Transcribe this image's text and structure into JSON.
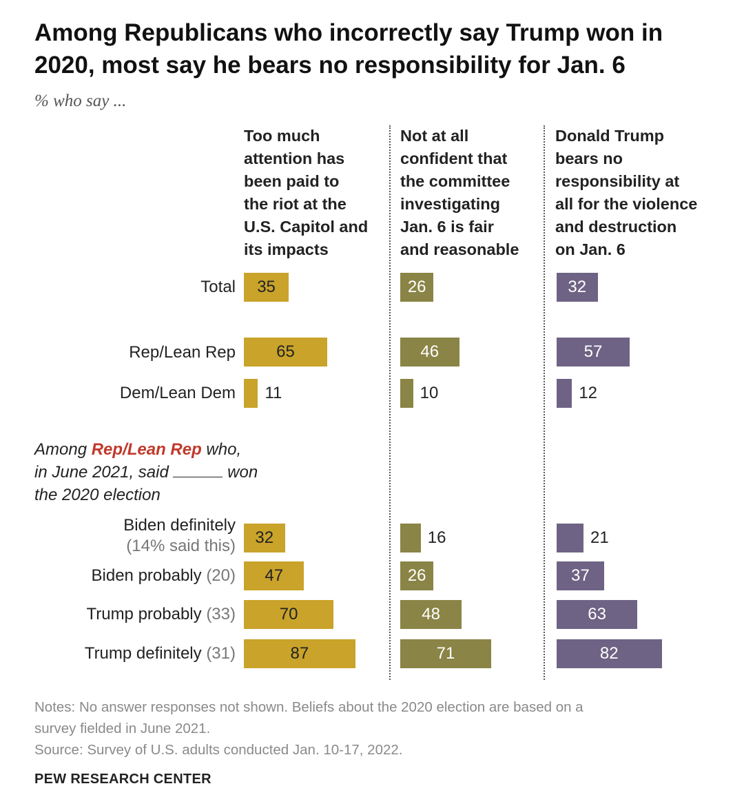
{
  "title": "Among Republicans who incorrectly say Trump won in 2020, most say he bears no responsibility for Jan. 6",
  "subtitle": "% who say ...",
  "section_label": {
    "pre": "Among ",
    "highlight": "Rep/Lean Rep",
    "mid": " who,",
    "line2_pre": "in June 2021, said",
    "line2_post": "won",
    "line3": "the 2020 election"
  },
  "notes": {
    "line1": "Notes: No answer responses not shown. Beliefs about the 2020 election are based on a",
    "line2": "survey fielded in June 2021.",
    "line3": "Source: Survey of U.S. adults conducted Jan. 10-17, 2022."
  },
  "source_brand": "PEW RESEARCH CENTER",
  "colors": {
    "gold": "#c9a32a",
    "olive": "#8a8446",
    "purple": "#6e6384",
    "highlight": "#c0392b"
  },
  "chart_data": {
    "type": "bar",
    "orientation": "horizontal",
    "unit": "%",
    "xlim": [
      0,
      100
    ],
    "columns": [
      {
        "name": "Too much attention has been paid to the riot at the U.S. Capitol and its impacts",
        "header_lines": [
          "Too much",
          "attention has",
          "been paid to",
          "the riot at the",
          "U.S. Capitol and",
          "its impacts"
        ],
        "color": "#c9a32a",
        "values": [
          35,
          65,
          11,
          32,
          47,
          70,
          87
        ]
      },
      {
        "name": "Not at all confident that the committee investigating Jan. 6 is fair and reasonable",
        "header_lines": [
          "Not at all",
          "confident that",
          "the committee",
          "investigating",
          "Jan. 6 is fair",
          "and reasonable"
        ],
        "color": "#8a8446",
        "values": [
          26,
          46,
          10,
          16,
          26,
          48,
          71
        ]
      },
      {
        "name": "Donald Trump bears no responsibility at all for the violence and destruction on Jan. 6",
        "header_lines": [
          "Donald Trump",
          "bears no",
          "responsibility at",
          "all for the violence",
          "and destruction",
          "on Jan. 6"
        ],
        "color": "#6e6384",
        "values": [
          32,
          57,
          12,
          21,
          37,
          63,
          82
        ]
      }
    ],
    "rows": [
      {
        "label": "Total",
        "sub": ""
      },
      {
        "label": "Rep/Lean Rep",
        "sub": ""
      },
      {
        "label": "Dem/Lean Dem",
        "sub": ""
      },
      {
        "label": "Biden definitely",
        "sub": "(14% said this)"
      },
      {
        "label": "Biden probably",
        "sub": "(20)"
      },
      {
        "label": "Trump probably",
        "sub": "(33)"
      },
      {
        "label": "Trump definitely",
        "sub": "(31)"
      }
    ]
  }
}
